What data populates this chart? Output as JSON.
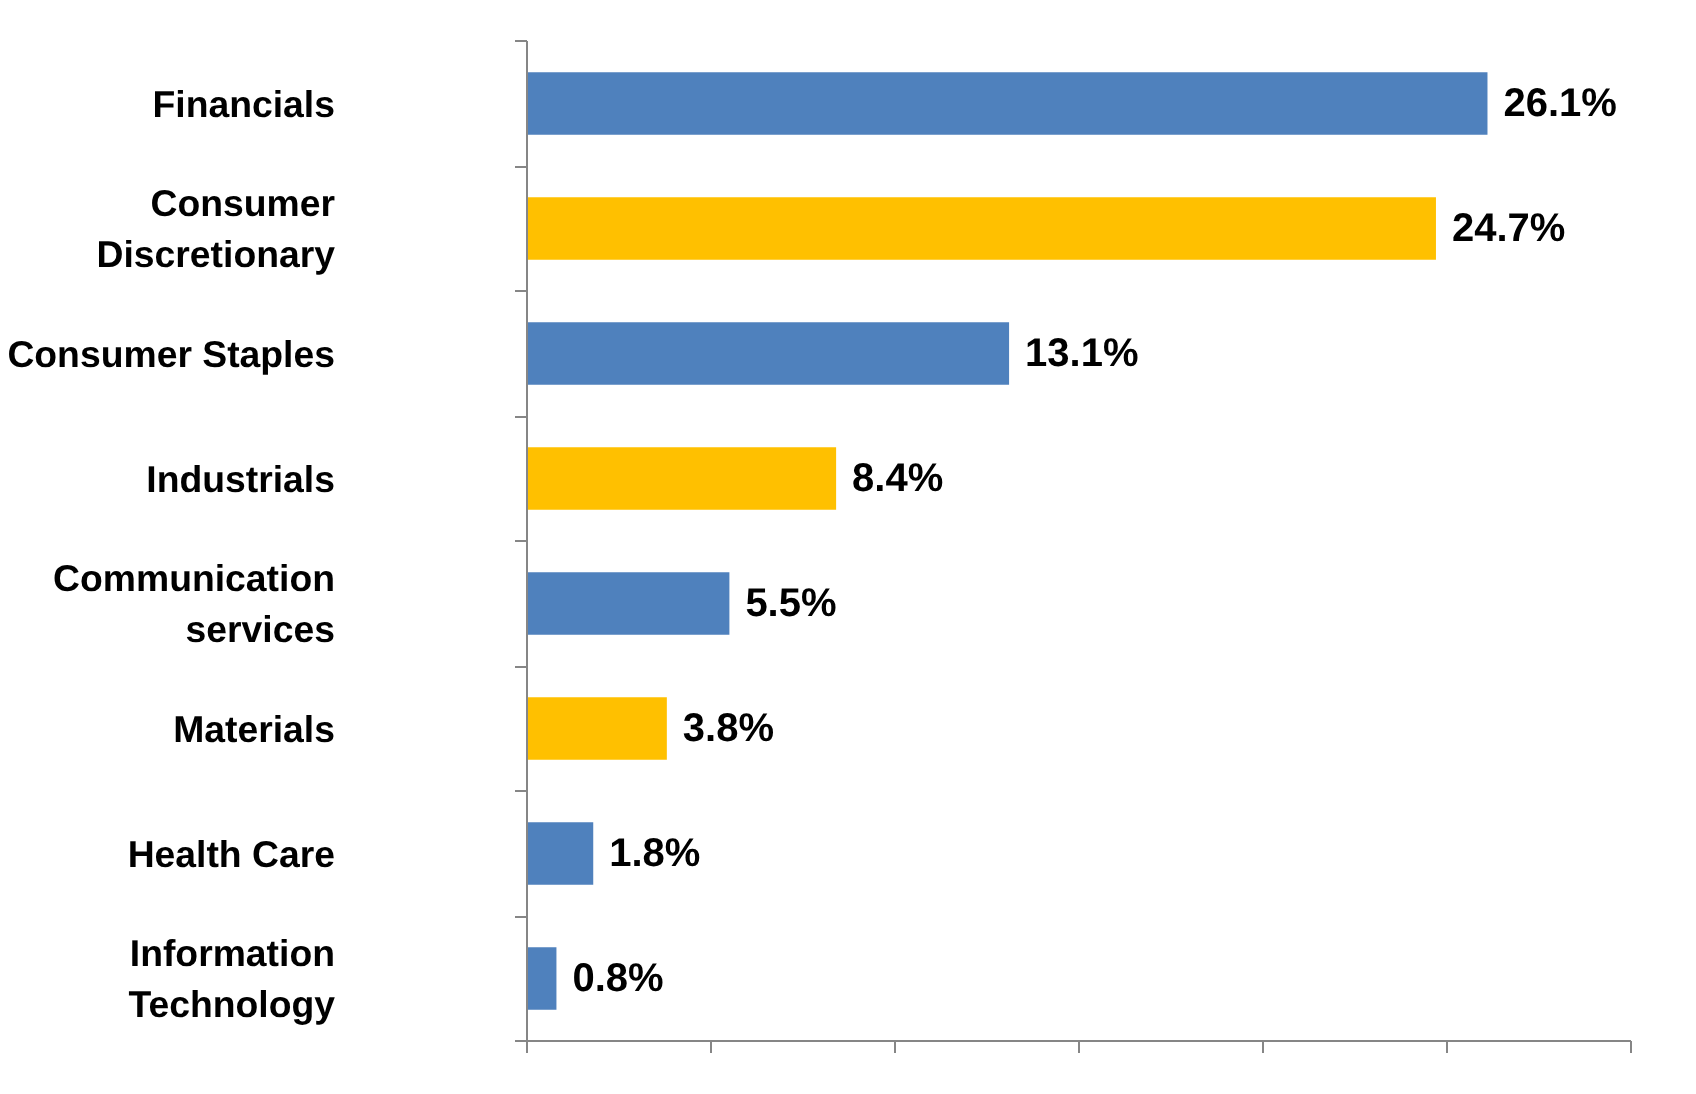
{
  "chart_data": {
    "type": "bar",
    "orientation": "horizontal",
    "categories": [
      "Financials",
      "Consumer Discretionary",
      "Consumer Staples",
      "Industrials",
      "Communication services",
      "Materials",
      "Health Care",
      "Information Technology"
    ],
    "values": [
      26.1,
      24.7,
      13.1,
      8.4,
      5.5,
      3.8,
      1.8,
      0.8
    ],
    "colors": [
      "#4f81bd",
      "#ffc000",
      "#4f81bd",
      "#ffc000",
      "#4f81bd",
      "#ffc000",
      "#4f81bd",
      "#4f81bd"
    ],
    "value_labels": [
      "26.1%",
      "24.7%",
      "13.1%",
      "8.4%",
      "5.5%",
      "3.8%",
      "1.8%",
      "0.8%"
    ],
    "xlim": [
      0,
      30
    ],
    "xticks": [
      {
        "value": 0,
        "label": null
      },
      {
        "value": 5,
        "label": null
      },
      {
        "value": 10,
        "label": null
      },
      {
        "value": 15,
        "label": null
      },
      {
        "value": 20,
        "label": null
      },
      {
        "value": 25,
        "label": null
      },
      {
        "value": 30,
        "label": null
      }
    ],
    "tick_labels": "y",
    "grid": false
  }
}
